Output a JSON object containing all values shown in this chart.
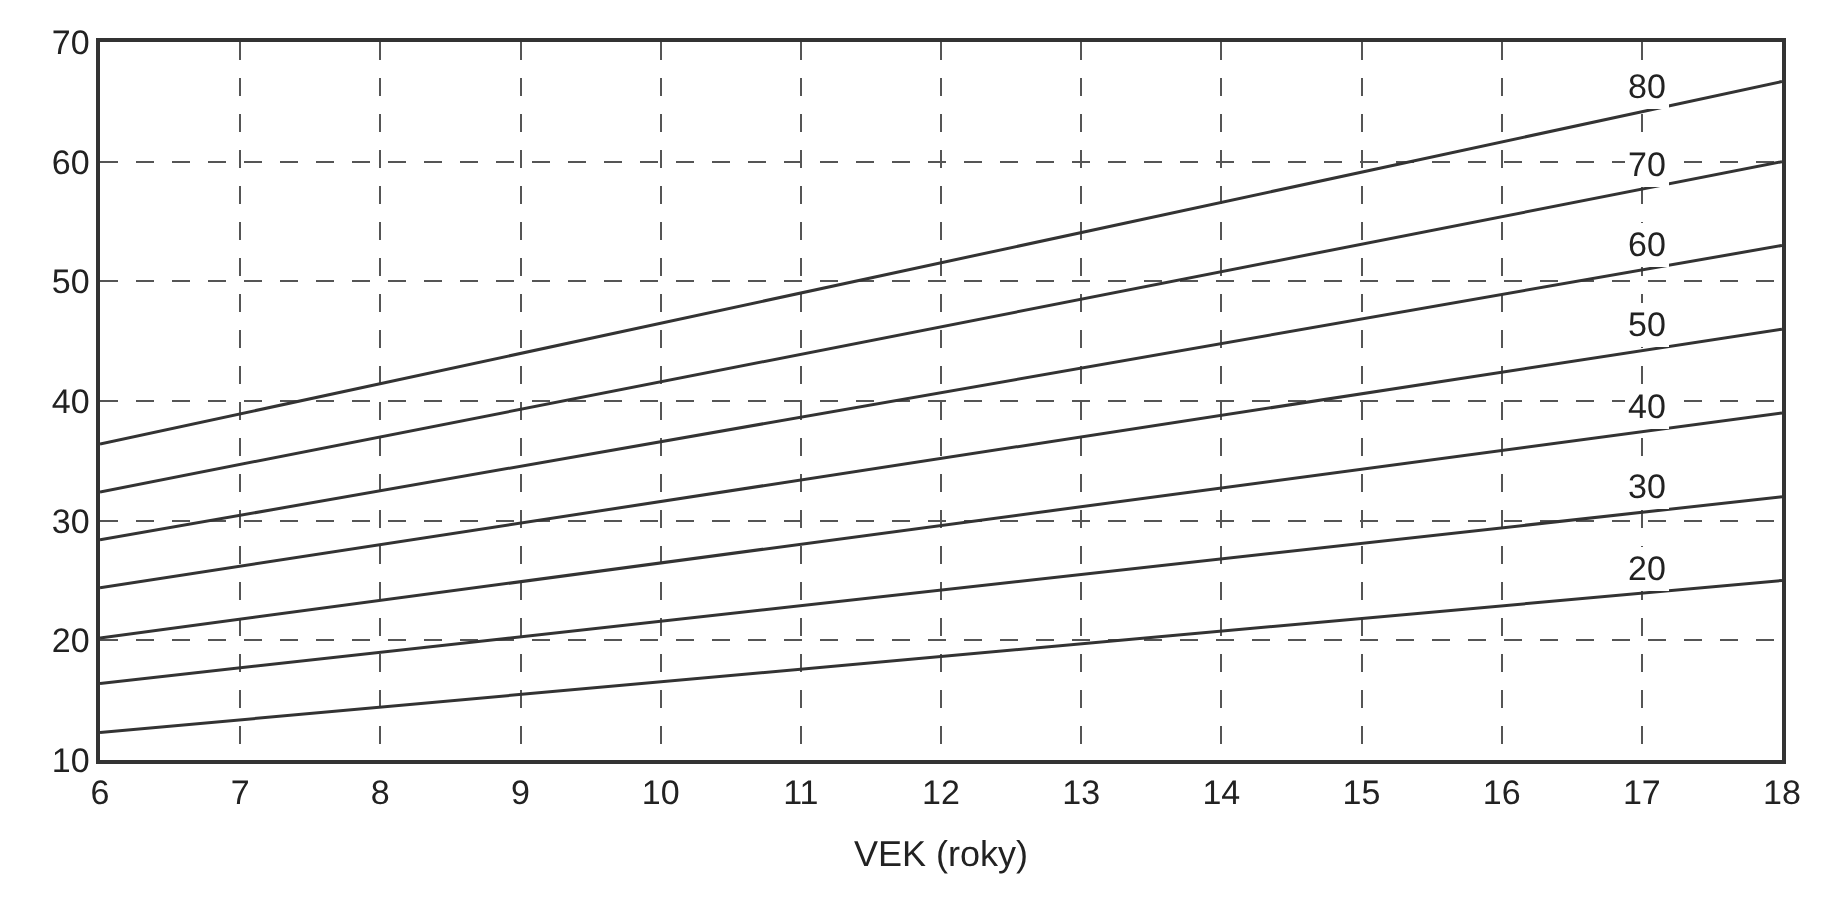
{
  "chart_data": {
    "type": "line",
    "xlabel": "VEK (roky)",
    "x": [
      6,
      18
    ],
    "series": [
      {
        "name": "80",
        "color": "#333333",
        "values": [
          36.4,
          66.7
        ]
      },
      {
        "name": "70",
        "color": "#333333",
        "values": [
          32.4,
          60
        ]
      },
      {
        "name": "60",
        "color": "#333333",
        "values": [
          28.4,
          53
        ]
      },
      {
        "name": "50",
        "color": "#333333",
        "values": [
          24.4,
          46
        ]
      },
      {
        "name": "40",
        "color": "#333333",
        "values": [
          20.2,
          39
        ]
      },
      {
        "name": "30",
        "color": "#333333",
        "values": [
          16.4,
          32
        ]
      },
      {
        "name": "20",
        "color": "#333333",
        "values": [
          12.3,
          25
        ]
      }
    ],
    "xlim": [
      6,
      18
    ],
    "xticks": [
      6,
      7,
      8,
      9,
      10,
      11,
      12,
      13,
      14,
      15,
      16,
      17,
      18
    ],
    "ylim": [
      10,
      70
    ],
    "yticks": [
      10,
      20,
      30,
      40,
      50,
      60,
      70
    ],
    "grid": true,
    "legend": false,
    "marker": "none",
    "line_style": "solid"
  }
}
